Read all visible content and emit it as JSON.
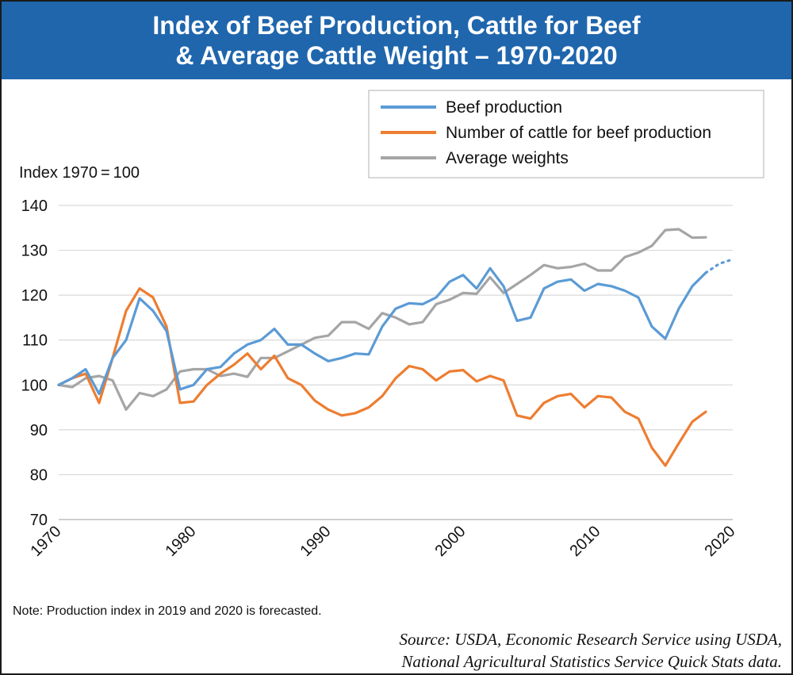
{
  "header": {
    "title_line1": "Index of Beef Production, Cattle for Beef",
    "title_line2": "& Average Cattle Weight – 1970-2020"
  },
  "footer": {
    "note": "Note: Production index in 2019 and 2020 is forecasted.",
    "source_line1": "Source: USDA, Economic Research Service using USDA,",
    "source_line2": "National Agricultural Statistics Service Quick Stats data."
  },
  "chart_data": {
    "type": "line",
    "ylabel": "Index 1970 = 100",
    "xlim": [
      1970,
      2020
    ],
    "ylim": [
      70,
      140
    ],
    "x_ticks": [
      "1970",
      "1980",
      "1990",
      "2000",
      "2010",
      "2020"
    ],
    "y_ticks": [
      "70",
      "80",
      "90",
      "100",
      "110",
      "120",
      "130",
      "140"
    ],
    "grid": "horizontal",
    "legend_position": "top-right",
    "series": [
      {
        "name": "Beef production",
        "color": "#5b9bd5",
        "x": [
          1970,
          1971,
          1972,
          1973,
          1974,
          1975,
          1976,
          1977,
          1978,
          1979,
          1980,
          1981,
          1982,
          1983,
          1984,
          1985,
          1986,
          1987,
          1988,
          1989,
          1990,
          1991,
          1992,
          1993,
          1994,
          1995,
          1996,
          1997,
          1998,
          1999,
          2000,
          2001,
          2002,
          2003,
          2004,
          2005,
          2006,
          2007,
          2008,
          2009,
          2010,
          2011,
          2012,
          2013,
          2014,
          2015,
          2016,
          2017,
          2018
        ],
        "values": [
          100,
          101.5,
          103.5,
          98,
          106,
          110,
          119.3,
          116.5,
          112,
          99,
          100,
          103.5,
          104,
          107,
          109,
          110,
          112.5,
          109,
          109,
          107,
          105.3,
          106,
          107,
          106.8,
          113,
          117,
          118.2,
          118,
          119.5,
          123,
          124.5,
          121.5,
          126,
          122,
          114.3,
          115,
          121.5,
          123,
          123.5,
          121,
          122.5,
          122,
          121,
          119.5,
          113,
          110.3,
          117,
          122,
          125
        ],
        "forecast_x": [
          2018,
          2019,
          2020
        ],
        "forecast_values": [
          125,
          127,
          128
        ]
      },
      {
        "name": "Number of cattle for beef production",
        "color": "#ed7d31",
        "x": [
          1970,
          1971,
          1972,
          1973,
          1974,
          1975,
          1976,
          1977,
          1978,
          1979,
          1980,
          1981,
          1982,
          1983,
          1984,
          1985,
          1986,
          1987,
          1988,
          1989,
          1990,
          1991,
          1992,
          1993,
          1994,
          1995,
          1996,
          1997,
          1998,
          1999,
          2000,
          2001,
          2002,
          2003,
          2004,
          2005,
          2006,
          2007,
          2008,
          2009,
          2010,
          2011,
          2012,
          2013,
          2014,
          2015,
          2016,
          2017,
          2018
        ],
        "values": [
          100,
          101.5,
          102.5,
          96,
          106,
          116.5,
          121.5,
          119.5,
          113,
          96,
          96.3,
          100,
          102.5,
          104.5,
          107,
          103.5,
          106.5,
          101.5,
          100,
          96.5,
          94.5,
          93.2,
          93.7,
          95,
          97.5,
          101.5,
          104.2,
          103.5,
          101,
          103,
          103.3,
          100.8,
          102,
          101,
          93.2,
          92.5,
          96,
          97.5,
          98,
          95,
          97.5,
          97.2,
          94,
          92.5,
          86,
          82,
          87,
          91.8,
          94
        ]
      },
      {
        "name": "Average weights",
        "color": "#a5a5a5",
        "x": [
          1970,
          1971,
          1972,
          1973,
          1974,
          1975,
          1976,
          1977,
          1978,
          1979,
          1980,
          1981,
          1982,
          1983,
          1984,
          1985,
          1986,
          1987,
          1988,
          1989,
          1990,
          1991,
          1992,
          1993,
          1994,
          1995,
          1996,
          1997,
          1998,
          1999,
          2000,
          2001,
          2002,
          2003,
          2004,
          2005,
          2006,
          2007,
          2008,
          2009,
          2010,
          2011,
          2012,
          2013,
          2014,
          2015,
          2016,
          2017,
          2018
        ],
        "values": [
          100,
          99.5,
          101.5,
          102,
          101,
          94.5,
          98.2,
          97.5,
          99,
          103,
          103.5,
          103.5,
          102,
          102.5,
          101.8,
          106,
          106,
          107.5,
          109,
          110.5,
          111,
          114,
          114,
          112.5,
          116,
          115,
          113.5,
          114,
          118,
          119,
          120.5,
          120.3,
          124,
          120.5,
          122.5,
          124.5,
          126.7,
          126,
          126.3,
          127,
          125.5,
          125.5,
          128.5,
          129.5,
          131,
          134.5,
          134.7,
          132.8,
          132.9
        ]
      }
    ]
  }
}
